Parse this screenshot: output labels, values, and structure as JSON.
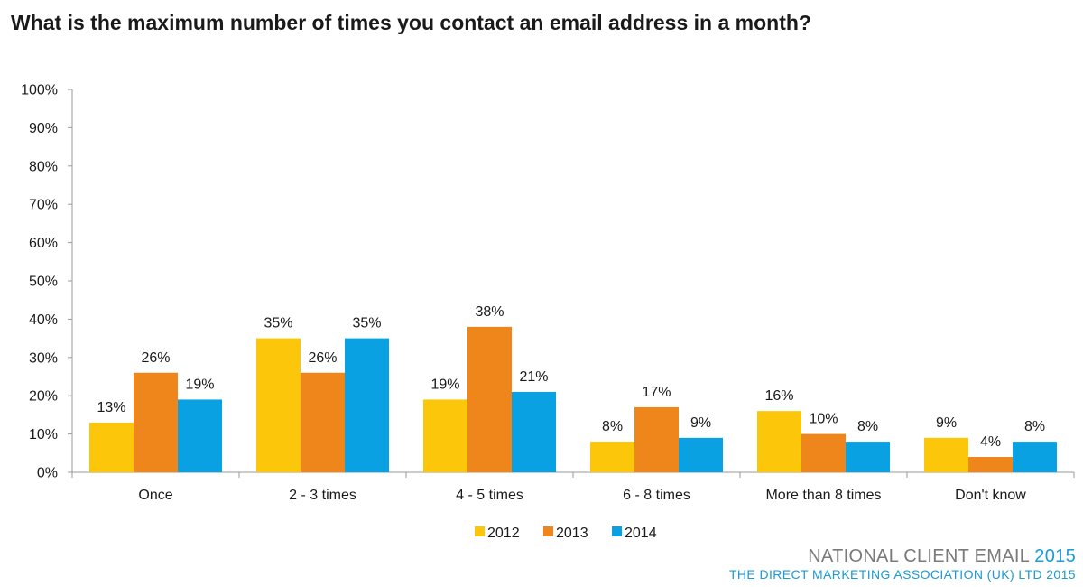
{
  "chart_data": {
    "type": "bar",
    "title": "What is the maximum number of times you contact an email address in a month?",
    "xlabel": "",
    "ylabel": "",
    "ylim": [
      0,
      100
    ],
    "y_ticks": [
      "0%",
      "10%",
      "20%",
      "30%",
      "40%",
      "50%",
      "60%",
      "70%",
      "80%",
      "90%",
      "100%"
    ],
    "categories": [
      "Once",
      "2 - 3 times",
      "4 - 5 times",
      "6 - 8 times",
      "More than 8 times",
      "Don't know"
    ],
    "series": [
      {
        "name": "2012",
        "color": "#fcc60a",
        "values": [
          13,
          35,
          19,
          8,
          16,
          9
        ]
      },
      {
        "name": "2013",
        "color": "#ee861b",
        "values": [
          26,
          26,
          38,
          17,
          10,
          4
        ]
      },
      {
        "name": "2014",
        "color": "#0aa1e2",
        "values": [
          19,
          35,
          21,
          9,
          8,
          8
        ]
      }
    ],
    "value_suffix": "%",
    "grid": false,
    "legend_position": "bottom"
  },
  "footer": {
    "line1_text": "NATIONAL CLIENT EMAIL",
    "line1_year": "2015",
    "line2": "THE DIRECT MARKETING ASSOCIATION (UK) LTD 2015"
  }
}
